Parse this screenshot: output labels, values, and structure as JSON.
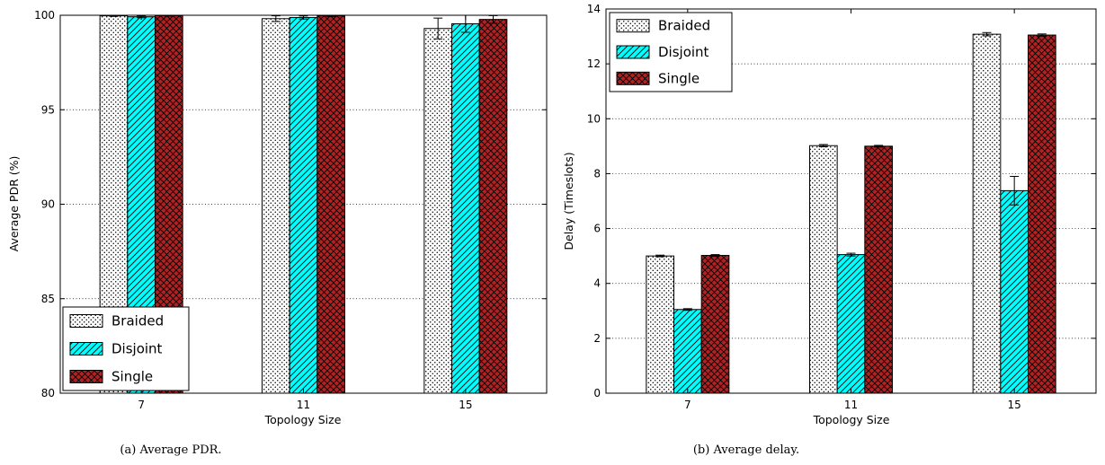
{
  "chart_data": [
    {
      "type": "bar",
      "caption": "(a) Average PDR.",
      "xlabel": "Topology Size",
      "ylabel": "Average PDR (%)",
      "categories": [
        "7",
        "11",
        "15"
      ],
      "ylim": [
        80,
        100
      ],
      "yticks": [
        80,
        85,
        90,
        95,
        100
      ],
      "grid": true,
      "legend_position": "bottom-left",
      "series": [
        {
          "name": "Braided",
          "values": [
            99.97,
            99.82,
            99.3
          ],
          "errors": [
            0.03,
            0.15,
            0.55
          ],
          "pattern": "dots",
          "color": "#ffffff"
        },
        {
          "name": "Disjoint",
          "values": [
            99.92,
            99.88,
            99.55
          ],
          "errors": [
            0.05,
            0.08,
            0.45
          ],
          "pattern": "hatch",
          "color": "#00ffff"
        },
        {
          "name": "Single",
          "values": [
            99.98,
            99.97,
            99.78
          ],
          "errors": [
            0.02,
            0.03,
            0.2
          ],
          "pattern": "crosshatch",
          "color": "#b22222"
        }
      ]
    },
    {
      "type": "bar",
      "caption": "(b) Average delay.",
      "xlabel": "Topology Size",
      "ylabel": "Delay (Timeslots)",
      "categories": [
        "7",
        "11",
        "15"
      ],
      "ylim": [
        0,
        14
      ],
      "yticks": [
        0,
        2,
        4,
        6,
        8,
        10,
        12,
        14
      ],
      "grid": true,
      "legend_position": "top-left",
      "series": [
        {
          "name": "Braided",
          "values": [
            5.0,
            9.02,
            13.08
          ],
          "errors": [
            0.03,
            0.04,
            0.06
          ],
          "pattern": "dots",
          "color": "#ffffff"
        },
        {
          "name": "Disjoint",
          "values": [
            3.05,
            5.05,
            7.38
          ],
          "errors": [
            0.03,
            0.05,
            0.52
          ],
          "pattern": "hatch",
          "color": "#00ffff"
        },
        {
          "name": "Single",
          "values": [
            5.02,
            9.0,
            13.05
          ],
          "errors": [
            0.03,
            0.03,
            0.04
          ],
          "pattern": "crosshatch",
          "color": "#b22222"
        }
      ]
    }
  ]
}
